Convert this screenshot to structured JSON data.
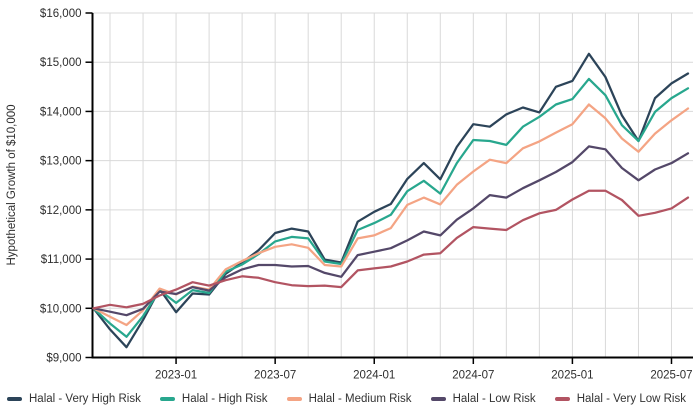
{
  "chart_data": {
    "type": "line",
    "title": "",
    "ylabel": "Hypothetical Growth of $10,000",
    "xlabel": "",
    "ylim": [
      9000,
      16000
    ],
    "grid": true,
    "legend_position": "bottom",
    "x": [
      "2022-08",
      "2022-09",
      "2022-10",
      "2022-11",
      "2022-12",
      "2023-01",
      "2023-02",
      "2023-03",
      "2023-04",
      "2023-05",
      "2023-06",
      "2023-07",
      "2023-08",
      "2023-09",
      "2023-10",
      "2023-11",
      "2023-12",
      "2024-01",
      "2024-02",
      "2024-03",
      "2024-04",
      "2024-05",
      "2024-06",
      "2024-07",
      "2024-08",
      "2024-09",
      "2024-10",
      "2024-11",
      "2024-12",
      "2025-01",
      "2025-02",
      "2025-03",
      "2025-04",
      "2025-05",
      "2025-06",
      "2025-07",
      "2025-08"
    ],
    "y_ticks": [
      {
        "v": 9000,
        "label": "$9,000"
      },
      {
        "v": 10000,
        "label": "$10,000"
      },
      {
        "v": 11000,
        "label": "$11,000"
      },
      {
        "v": 12000,
        "label": "$12,000"
      },
      {
        "v": 13000,
        "label": "$13,000"
      },
      {
        "v": 14000,
        "label": "$14,000"
      },
      {
        "v": 15000,
        "label": "$15,000"
      },
      {
        "v": 16000,
        "label": "$16,000"
      }
    ],
    "x_ticks": [
      {
        "i": 5,
        "label": "2023-01"
      },
      {
        "i": 11,
        "label": "2023-07"
      },
      {
        "i": 17,
        "label": "2024-01"
      },
      {
        "i": 23,
        "label": "2024-07"
      },
      {
        "i": 29,
        "label": "2025-01"
      },
      {
        "i": 35,
        "label": "2025-07"
      }
    ],
    "series": [
      {
        "name": "Halal - Very High Risk",
        "color": "#2c4459",
        "values": [
          10000,
          9570,
          9210,
          9760,
          10390,
          9920,
          10300,
          10280,
          10700,
          10930,
          11180,
          11530,
          11620,
          11560,
          10990,
          10930,
          11760,
          11960,
          12120,
          12630,
          12950,
          12620,
          13280,
          13740,
          13690,
          13940,
          14080,
          13980,
          14500,
          14620,
          15170,
          14700,
          13920,
          13400,
          14270,
          14570,
          14770
        ]
      },
      {
        "name": "Halal - High Risk",
        "color": "#28a78e",
        "values": [
          10000,
          9690,
          9420,
          9840,
          10370,
          10110,
          10370,
          10310,
          10740,
          10890,
          11100,
          11360,
          11450,
          11420,
          10950,
          10900,
          11590,
          11730,
          11900,
          12380,
          12590,
          12330,
          12950,
          13420,
          13400,
          13320,
          13690,
          13890,
          14140,
          14250,
          14660,
          14330,
          13720,
          13400,
          13990,
          14270,
          14470
        ]
      },
      {
        "name": "Halal - Medium Risk",
        "color": "#f4a484",
        "values": [
          10000,
          9830,
          9660,
          9960,
          10400,
          10280,
          10440,
          10380,
          10790,
          10960,
          11120,
          11250,
          11300,
          11230,
          10880,
          10850,
          11420,
          11480,
          11630,
          12100,
          12250,
          12110,
          12510,
          12780,
          13020,
          12950,
          13250,
          13390,
          13570,
          13740,
          14140,
          13860,
          13450,
          13180,
          13550,
          13820,
          14060
        ]
      },
      {
        "name": "Halal - Low Risk",
        "color": "#544869",
        "values": [
          10000,
          9930,
          9860,
          9990,
          10340,
          10290,
          10430,
          10360,
          10630,
          10790,
          10880,
          10880,
          10850,
          10860,
          10720,
          10640,
          11080,
          11150,
          11220,
          11380,
          11560,
          11480,
          11800,
          12030,
          12300,
          12250,
          12440,
          12600,
          12770,
          12970,
          13290,
          13230,
          12850,
          12600,
          12820,
          12950,
          13150
        ]
      },
      {
        "name": "Halal - Very Low Risk",
        "color": "#b25462",
        "values": [
          10000,
          10070,
          10020,
          10090,
          10260,
          10380,
          10530,
          10460,
          10570,
          10650,
          10620,
          10530,
          10470,
          10450,
          10460,
          10430,
          10770,
          10810,
          10850,
          10950,
          11090,
          11120,
          11430,
          11650,
          11620,
          11590,
          11790,
          11930,
          12000,
          12210,
          12390,
          12390,
          12200,
          11880,
          11940,
          12030,
          12250
        ]
      }
    ],
    "style": {
      "grid_color": "#d9d9d9",
      "axis_color": "#000000",
      "tick_label_color": "#2e2e2e",
      "legend_text_color": "#333333"
    }
  }
}
